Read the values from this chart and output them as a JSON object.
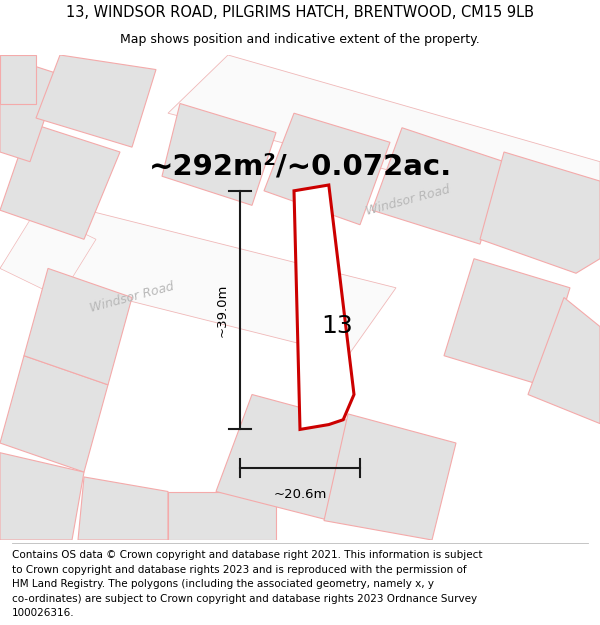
{
  "title_line1": "13, WINDSOR ROAD, PILGRIMS HATCH, BRENTWOOD, CM15 9LB",
  "title_line2": "Map shows position and indicative extent of the property.",
  "area_label": "~292m²/~0.072ac.",
  "number_label": "13",
  "width_label": "~20.6m",
  "height_label": "~39.0m",
  "road_label_1": "Windsor Road",
  "road_label_2": "Windsor Road",
  "map_bg": "#f2f2f2",
  "plot_outline_color": "#cc0000",
  "building_fill": "#e2e2e2",
  "building_edge": "#f4aaaa",
  "road_fill": "#fafafa",
  "road_edge": "#f0b8b8",
  "dim_line_color": "#1a1a1a",
  "road_label_color": "#b8b8b8",
  "footer_lines": [
    "Contains OS data © Crown copyright and database right 2021. This information is subject",
    "to Crown copyright and database rights 2023 and is reproduced with the permission of",
    "HM Land Registry. The polygons (including the associated geometry, namely x, y",
    "co-ordinates) are subject to Crown copyright and database rights 2023 Ordnance Survey",
    "100026316."
  ],
  "title_fontsize": 10.5,
  "subtitle_fontsize": 9,
  "footer_fontsize": 7.5,
  "area_fontsize": 21,
  "number_fontsize": 18,
  "dim_fontsize": 9.5,
  "road_label_fontsize": 9
}
